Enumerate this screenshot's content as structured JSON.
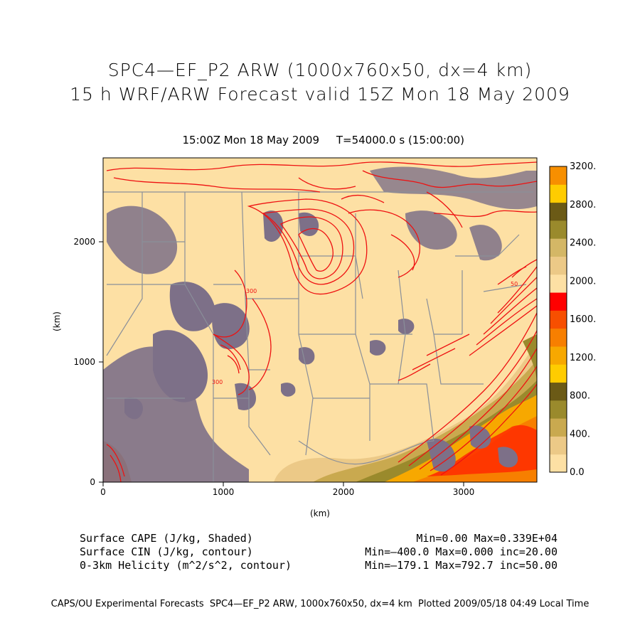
{
  "header": {
    "title_line1": "SPC4—EF_P2 ARW (1000x760x50, dx=4 km)",
    "title_line2": "15 h WRF/ARW Forecast valid 15Z Mon 18 May 2009",
    "valid_time": "15:00Z Mon 18 May 2009",
    "model_time": "T=54000.0 s (15:00:00)"
  },
  "map": {
    "xlabel": "(km)",
    "ylabel": "(km)",
    "x_ticks": [
      "0",
      "1000",
      "2000",
      "3000"
    ],
    "y_ticks": [
      "0",
      "1000",
      "2000"
    ],
    "x_range": [
      0,
      3600
    ],
    "y_range": [
      0,
      2700
    ],
    "contour_labels": [
      "300",
      "300",
      "50"
    ]
  },
  "colorbar": {
    "labels": [
      "0.0",
      "400.",
      "800.",
      "1200.",
      "1600.",
      "2000.",
      "2400.",
      "2800.",
      "3200."
    ],
    "colors": [
      "#fde0a4",
      "#ecc987",
      "#c9a94f",
      "#9a8a2c",
      "#6b5a16",
      "#ffcc00",
      "#f7a800",
      "#f77f00",
      "#f74f00",
      "#ff0000",
      "#fde0a4",
      "#ecc987",
      "#d4b766",
      "#9a8a2c",
      "#6b5a16",
      "#ffcc00",
      "#f78f00"
    ]
  },
  "fields": {
    "cape": {
      "label": "Surface CAPE (J/kg, Shaded)",
      "stats": "Min=0.00 Max=0.339E+04"
    },
    "cin": {
      "label": "Surface CIN (J/kg, contour)",
      "stats": "Min=—400.0 Max=0.000 inc=20.00"
    },
    "helicity": {
      "label": "0-3km Helicity (m^2/s^2, contour)",
      "stats": "Min=—179.1 Max=792.7 inc=50.00"
    }
  },
  "footer": {
    "text": "CAPS/OU Experimental Forecasts  SPC4—EF_P2 ARW, 1000x760x50, dx=4 km  Plotted 2009/05/18 04:49 Local Time"
  },
  "palette": {
    "background_fill": "#fde0a4",
    "cin_gray": "#7d7088",
    "helicity_red": "#ee1111",
    "state_lines": "#8a8f99"
  }
}
